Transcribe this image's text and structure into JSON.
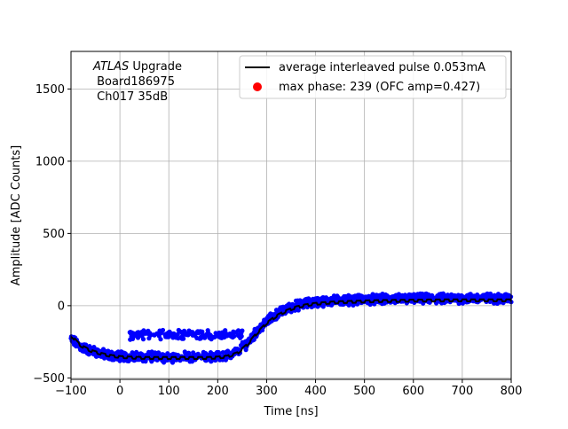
{
  "chart_data": {
    "type": "scatter",
    "title": "",
    "xlabel": "Time [ns]",
    "ylabel": "Amplitude [ADC Counts]",
    "xlim": [
      -100,
      800
    ],
    "ylim": [
      -510,
      1760
    ],
    "xticks": [
      -100,
      0,
      100,
      200,
      300,
      400,
      500,
      600,
      700,
      800
    ],
    "yticks": [
      -500,
      0,
      500,
      1000,
      1500
    ],
    "grid": true,
    "annotation": {
      "line1_italic": "ATLAS",
      "line1_rest": " Upgrade",
      "line2": " Board186975",
      "line3": " Ch017 35dB"
    },
    "legend": {
      "position": "top-right",
      "entries": [
        {
          "label": "average interleaved pulse 0.053mA",
          "marker": "line",
          "color": "#000000"
        },
        {
          "label": "max phase: 239 (OFC amp=0.427)",
          "marker": "dot",
          "color": "#ff0000"
        }
      ]
    },
    "series": [
      {
        "name": "samples",
        "kind": "scatter",
        "color": "#0000ff",
        "x": [
          -100,
          -80,
          -60,
          -40,
          -20,
          0,
          20,
          40,
          60,
          80,
          100,
          120,
          140,
          160,
          180,
          200,
          220,
          240,
          260,
          280,
          300,
          320,
          340,
          360,
          380,
          400,
          420,
          440,
          460,
          480,
          500,
          520,
          540,
          560,
          580,
          600,
          620,
          640,
          660,
          680,
          700,
          720,
          740,
          760,
          780,
          800
        ],
        "y": [
          -230,
          -285,
          -310,
          -330,
          -345,
          -350,
          -355,
          -355,
          -355,
          -355,
          -355,
          -355,
          -355,
          -355,
          -355,
          -350,
          -345,
          -320,
          -260,
          -180,
          -110,
          -60,
          -25,
          0,
          15,
          25,
          30,
          35,
          38,
          40,
          42,
          44,
          45,
          46,
          47,
          48,
          48,
          49,
          49,
          50,
          50,
          50,
          50,
          50,
          50,
          50
        ],
        "spread": 55,
        "upper_band": {
          "x": [
            20,
            250
          ],
          "y": -200
        }
      },
      {
        "name": "average interleaved pulse 0.053mA",
        "kind": "line",
        "color": "#000000",
        "x": [
          -100,
          -80,
          -60,
          -40,
          -20,
          0,
          20,
          40,
          60,
          80,
          100,
          120,
          140,
          160,
          180,
          200,
          220,
          240,
          260,
          280,
          300,
          320,
          340,
          360,
          380,
          400,
          420,
          440,
          460,
          480,
          500,
          520,
          540,
          560,
          580,
          600,
          620,
          640,
          660,
          680,
          700,
          720,
          740,
          760,
          780,
          800
        ],
        "y": [
          -200,
          -270,
          -305,
          -325,
          -340,
          -348,
          -352,
          -354,
          -355,
          -355,
          -355,
          -355,
          -355,
          -355,
          -355,
          -352,
          -345,
          -322,
          -265,
          -185,
          -115,
          -65,
          -30,
          -5,
          10,
          20,
          25,
          30,
          32,
          34,
          36,
          38,
          39,
          40,
          41,
          42,
          42,
          43,
          43,
          44,
          44,
          44,
          44,
          44,
          44,
          44
        ]
      }
    ]
  }
}
